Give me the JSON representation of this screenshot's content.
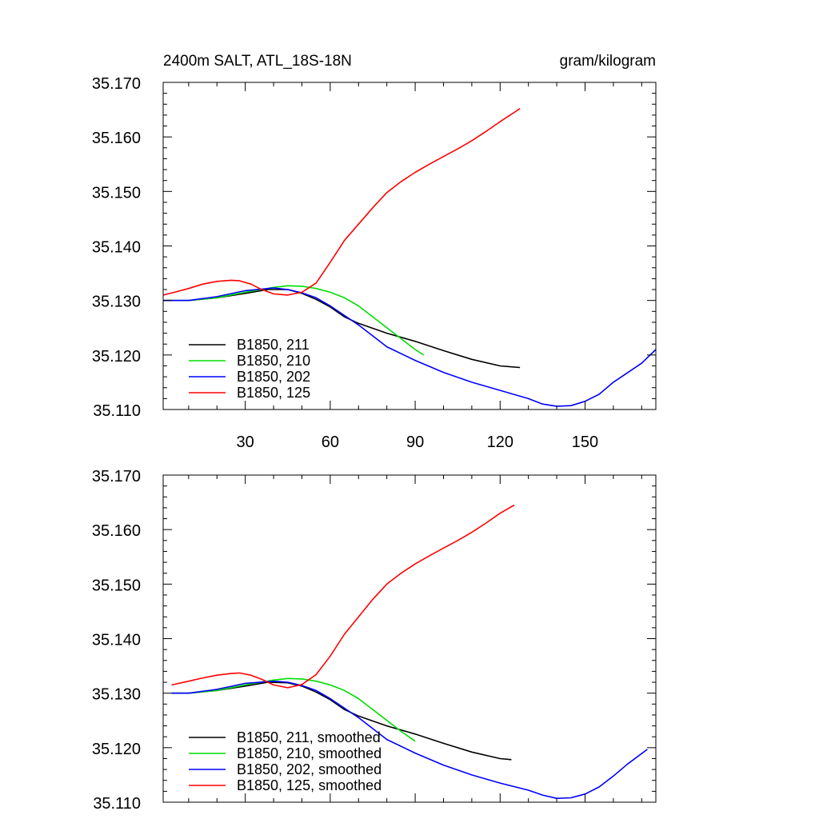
{
  "chart_data": [
    {
      "type": "line",
      "title": "2400m SALT, ATL_18S-18N",
      "units": "gram/kilogram",
      "xlim": [
        1,
        175
      ],
      "ylim": [
        35.11,
        35.17
      ],
      "xticks": [
        30,
        60,
        90,
        120,
        150
      ],
      "yticks": [
        35.11,
        35.12,
        35.13,
        35.14,
        35.15,
        35.16,
        35.17
      ],
      "ytick_labels": [
        "35.110",
        "35.120",
        "35.130",
        "35.140",
        "35.150",
        "35.160",
        "35.170"
      ],
      "grid": false,
      "legend_position": "bottom-left",
      "series": [
        {
          "name": "B1850, 211",
          "color": "#000000",
          "x": [
            1,
            10,
            20,
            30,
            38,
            45,
            50,
            55,
            60,
            65,
            70,
            80,
            90,
            100,
            110,
            120,
            127
          ],
          "y": [
            35.13,
            35.13,
            35.1305,
            35.1313,
            35.132,
            35.132,
            35.1313,
            35.1302,
            35.1288,
            35.127,
            35.1258,
            35.124,
            35.1225,
            35.1208,
            35.1192,
            35.118,
            35.1177
          ]
        },
        {
          "name": "B1850, 210",
          "color": "#00dd00",
          "x": [
            1,
            10,
            20,
            30,
            40,
            45,
            50,
            55,
            60,
            65,
            70,
            75,
            80,
            85,
            90,
            93
          ],
          "y": [
            35.13,
            35.13,
            35.1305,
            35.1315,
            35.1324,
            35.1327,
            35.1326,
            35.1322,
            35.1315,
            35.1305,
            35.129,
            35.127,
            35.125,
            35.123,
            35.121,
            35.12
          ]
        },
        {
          "name": "B1850, 202",
          "color": "#0000ff",
          "x": [
            1,
            10,
            20,
            30,
            40,
            45,
            50,
            55,
            60,
            70,
            80,
            90,
            100,
            110,
            120,
            130,
            135,
            140,
            145,
            150,
            155,
            160,
            170,
            175
          ],
          "y": [
            35.13,
            35.13,
            35.1307,
            35.1318,
            35.1323,
            35.132,
            35.1314,
            35.1305,
            35.129,
            35.1255,
            35.1215,
            35.119,
            35.1168,
            35.115,
            35.1135,
            35.112,
            35.111,
            35.1106,
            35.1107,
            35.1115,
            35.1128,
            35.115,
            35.1185,
            35.121
          ]
        },
        {
          "name": "B1850, 125",
          "color": "#ff0000",
          "x": [
            1,
            5,
            10,
            15,
            20,
            25,
            28,
            32,
            35,
            40,
            45,
            50,
            55,
            60,
            65,
            70,
            75,
            80,
            85,
            90,
            95,
            100,
            105,
            110,
            115,
            120,
            125,
            127
          ],
          "y": [
            35.131,
            35.1315,
            35.1322,
            35.133,
            35.1335,
            35.1337,
            35.1336,
            35.133,
            35.1322,
            35.1312,
            35.131,
            35.1315,
            35.1332,
            35.137,
            35.141,
            35.144,
            35.147,
            35.1498,
            35.1518,
            35.1535,
            35.155,
            35.1564,
            35.1578,
            35.1593,
            35.161,
            35.1628,
            35.1645,
            35.1652
          ]
        }
      ]
    },
    {
      "type": "line",
      "xlim": [
        1,
        175
      ],
      "ylim": [
        35.11,
        35.17
      ],
      "xticks": [
        30,
        60,
        90,
        120,
        150
      ],
      "yticks": [
        35.11,
        35.12,
        35.13,
        35.14,
        35.15,
        35.16,
        35.17
      ],
      "ytick_labels": [
        "35.110",
        "35.120",
        "35.130",
        "35.140",
        "35.150",
        "35.160",
        "35.170"
      ],
      "grid": false,
      "legend_position": "bottom-left",
      "series": [
        {
          "name": "B1850, 211, smoothed",
          "color": "#000000",
          "x": [
            4,
            10,
            20,
            30,
            38,
            45,
            50,
            55,
            60,
            65,
            70,
            80,
            90,
            100,
            110,
            120,
            124
          ],
          "y": [
            35.13,
            35.13,
            35.1305,
            35.1313,
            35.132,
            35.1319,
            35.1313,
            35.1302,
            35.1288,
            35.127,
            35.1258,
            35.124,
            35.1225,
            35.1208,
            35.1192,
            35.118,
            35.1178
          ]
        },
        {
          "name": "B1850, 210, smoothed",
          "color": "#00dd00",
          "x": [
            4,
            10,
            20,
            30,
            40,
            45,
            50,
            55,
            60,
            65,
            70,
            75,
            80,
            85,
            90
          ],
          "y": [
            35.13,
            35.13,
            35.1305,
            35.1315,
            35.1324,
            35.1327,
            35.1326,
            35.1322,
            35.1315,
            35.1305,
            35.129,
            35.127,
            35.125,
            35.123,
            35.1212
          ]
        },
        {
          "name": "B1850, 202, smoothed",
          "color": "#0000ff",
          "x": [
            4,
            10,
            20,
            30,
            40,
            45,
            50,
            55,
            60,
            70,
            80,
            90,
            100,
            110,
            120,
            130,
            135,
            140,
            145,
            150,
            155,
            160,
            165,
            172
          ],
          "y": [
            35.13,
            35.13,
            35.1307,
            35.1318,
            35.1322,
            35.132,
            35.1314,
            35.1305,
            35.129,
            35.1255,
            35.1215,
            35.119,
            35.1168,
            35.115,
            35.1135,
            35.1122,
            35.1113,
            35.1107,
            35.1108,
            35.1115,
            35.1128,
            35.1148,
            35.117,
            35.1197
          ]
        },
        {
          "name": "B1850, 125, smoothed",
          "color": "#ff0000",
          "x": [
            4,
            10,
            15,
            20,
            25,
            28,
            32,
            36,
            40,
            45,
            50,
            55,
            60,
            65,
            70,
            75,
            80,
            85,
            90,
            95,
            100,
            105,
            110,
            115,
            120,
            125
          ],
          "y": [
            35.1315,
            35.1322,
            35.1328,
            35.1333,
            35.1336,
            35.1337,
            35.1333,
            35.1325,
            35.1315,
            35.131,
            35.1316,
            35.1334,
            35.1368,
            35.1408,
            35.144,
            35.1472,
            35.15,
            35.152,
            35.1537,
            35.1552,
            35.1566,
            35.158,
            35.1595,
            35.1612,
            35.163,
            35.1645
          ]
        }
      ]
    }
  ]
}
